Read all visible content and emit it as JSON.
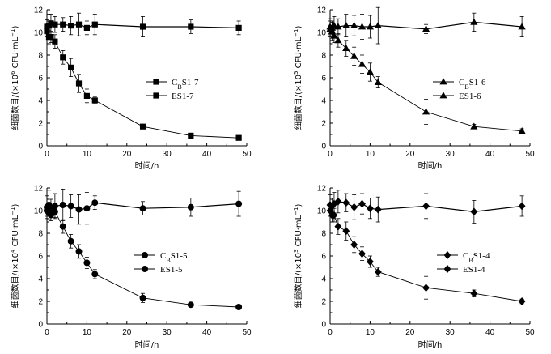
{
  "chart_data": [
    {
      "type": "line",
      "id": "s7",
      "title": "",
      "xlabel": "时间/h",
      "ylabel": {
        "prefix": "细菌数目/(×10",
        "exp": "6",
        "suffix": " CFU·mL",
        "unit_exp": "−1",
        "close": ")"
      },
      "xlim": [
        0,
        50
      ],
      "ylim": [
        0,
        12
      ],
      "xticks": [
        0,
        10,
        20,
        30,
        40,
        50
      ],
      "yticks": [
        0,
        2,
        4,
        6,
        8,
        10,
        12
      ],
      "marker": "square",
      "legend_position": "center-left",
      "series": [
        {
          "name": "CBS1-7",
          "label_main": "C",
          "label_sub": "B",
          "label_rest": "S1-7",
          "x": [
            0,
            0.5,
            1,
            2,
            4,
            6,
            8,
            10,
            12,
            24,
            36,
            48
          ],
          "y": [
            10.5,
            10.6,
            10.8,
            10.7,
            10.7,
            10.6,
            10.7,
            10.4,
            10.7,
            10.5,
            10.5,
            10.4
          ],
          "err": [
            0.6,
            1.0,
            0.8,
            0.7,
            0.6,
            0.8,
            1.0,
            0.6,
            0.9,
            0.9,
            0.6,
            0.6
          ]
        },
        {
          "name": "ES1-7",
          "label_main": "ES1-7",
          "label_sub": "",
          "label_rest": "",
          "x": [
            0,
            0.5,
            1,
            2,
            4,
            6,
            8,
            10,
            12,
            24,
            36,
            48
          ],
          "y": [
            10.1,
            9.6,
            9.6,
            9.2,
            7.8,
            6.9,
            5.5,
            4.4,
            4.0,
            1.7,
            0.9,
            0.7
          ],
          "err": [
            0.5,
            0.6,
            0.5,
            0.6,
            0.6,
            0.8,
            0.8,
            0.6,
            0.3,
            0.2,
            0.2,
            0.2
          ]
        }
      ]
    },
    {
      "type": "line",
      "id": "s6",
      "title": "",
      "xlabel": "时间/h",
      "ylabel": {
        "prefix": "细菌数目/(×10",
        "exp": "5",
        "suffix": " CFU·mL",
        "unit_exp": "−1",
        "close": ")"
      },
      "xlim": [
        0,
        50
      ],
      "ylim": [
        0,
        12
      ],
      "xticks": [
        0,
        10,
        20,
        30,
        40,
        50
      ],
      "yticks": [
        0,
        2,
        4,
        6,
        8,
        10,
        12
      ],
      "marker": "triangle",
      "legend_position": "center-right",
      "series": [
        {
          "name": "CBS1-6",
          "label_main": "C",
          "label_sub": "B",
          "label_rest": "S1-6",
          "x": [
            0,
            0.5,
            1,
            2,
            4,
            6,
            8,
            10,
            12,
            24,
            36,
            48
          ],
          "y": [
            10.5,
            10.4,
            10.6,
            10.5,
            10.6,
            10.6,
            10.5,
            10.5,
            10.6,
            10.3,
            10.9,
            10.5
          ],
          "err": [
            0.7,
            0.6,
            0.8,
            0.7,
            1.0,
            0.9,
            1.1,
            1.0,
            1.6,
            0.4,
            0.8,
            0.9
          ]
        },
        {
          "name": "ES1-6",
          "label_main": "ES1-6",
          "label_sub": "",
          "label_rest": "",
          "x": [
            0,
            0.5,
            1,
            2,
            4,
            6,
            8,
            10,
            12,
            24,
            36,
            48
          ],
          "y": [
            10.3,
            10.1,
            9.7,
            9.3,
            8.6,
            7.9,
            7.2,
            6.5,
            5.6,
            3.0,
            1.7,
            1.3
          ],
          "err": [
            0.7,
            0.8,
            0.6,
            0.6,
            0.7,
            0.8,
            0.8,
            0.8,
            0.5,
            1.1,
            0.2,
            0.2
          ]
        }
      ]
    },
    {
      "type": "line",
      "id": "s5",
      "title": "",
      "xlabel": "时间/h",
      "ylabel": {
        "prefix": "细菌数目/(×10",
        "exp": "4",
        "suffix": " CFU·mL",
        "unit_exp": "−1",
        "close": ")"
      },
      "xlim": [
        0,
        50
      ],
      "ylim": [
        0,
        12
      ],
      "xticks": [
        0,
        10,
        20,
        30,
        40,
        50
      ],
      "yticks": [
        0,
        2,
        4,
        6,
        8,
        10,
        12
      ],
      "marker": "circle",
      "legend_position": "center-left",
      "series": [
        {
          "name": "CBS1-5",
          "label_main": "C",
          "label_sub": "B",
          "label_rest": "S1-5",
          "x": [
            0,
            0.5,
            1,
            2,
            4,
            6,
            8,
            10,
            12,
            24,
            36,
            48
          ],
          "y": [
            10.3,
            10.5,
            10.2,
            10.4,
            10.5,
            10.4,
            10.1,
            10.2,
            10.7,
            10.2,
            10.3,
            10.6
          ],
          "err": [
            1.0,
            1.3,
            0.8,
            1.1,
            1.4,
            1.0,
            1.3,
            1.4,
            0.6,
            0.6,
            0.8,
            1.1
          ]
        },
        {
          "name": "ES1-5",
          "label_main": "ES1-5",
          "label_sub": "",
          "label_rest": "",
          "x": [
            0,
            0.5,
            1,
            2,
            4,
            6,
            8,
            10,
            12,
            24,
            36,
            48
          ],
          "y": [
            10.0,
            9.8,
            9.6,
            9.9,
            8.6,
            7.3,
            6.4,
            5.4,
            4.4,
            2.3,
            1.7,
            1.5
          ],
          "err": [
            0.5,
            0.6,
            0.5,
            0.5,
            0.6,
            0.6,
            0.6,
            0.5,
            0.4,
            0.4,
            0.2,
            0.2
          ]
        }
      ]
    },
    {
      "type": "line",
      "id": "s4",
      "title": "",
      "xlabel": "时间/h",
      "ylabel": {
        "prefix": "细菌数目/(×10",
        "exp": "3",
        "suffix": " CFU·mL",
        "unit_exp": "−1",
        "close": ")"
      },
      "xlim": [
        0,
        50
      ],
      "ylim": [
        0,
        12
      ],
      "xticks": [
        0,
        10,
        20,
        30,
        40,
        50
      ],
      "yticks": [
        0,
        2,
        4,
        6,
        8,
        10,
        12
      ],
      "marker": "diamond",
      "legend_position": "center-right",
      "series": [
        {
          "name": "CBS1-4",
          "label_main": "C",
          "label_sub": "B",
          "label_rest": "S1-4",
          "x": [
            0,
            0.5,
            1,
            2,
            4,
            6,
            8,
            10,
            12,
            24,
            36,
            48
          ],
          "y": [
            10.5,
            10.4,
            10.6,
            10.8,
            10.7,
            10.3,
            10.6,
            10.2,
            10.1,
            10.4,
            9.9,
            10.4
          ],
          "err": [
            0.9,
            0.7,
            1.0,
            1.0,
            0.8,
            1.1,
            0.9,
            0.9,
            1.1,
            1.1,
            1.0,
            0.9
          ]
        },
        {
          "name": "ES1-4",
          "label_main": "ES1-4",
          "label_sub": "",
          "label_rest": "",
          "x": [
            0,
            0.5,
            1,
            2,
            4,
            6,
            8,
            10,
            12,
            24,
            36,
            48
          ],
          "y": [
            10.0,
            9.6,
            9.6,
            8.6,
            8.2,
            7.0,
            6.2,
            5.5,
            4.6,
            3.2,
            2.7,
            2.0
          ],
          "err": [
            0.5,
            0.6,
            0.6,
            0.7,
            0.8,
            0.7,
            0.6,
            0.5,
            0.4,
            1.0,
            0.3,
            0.2
          ]
        }
      ]
    }
  ]
}
